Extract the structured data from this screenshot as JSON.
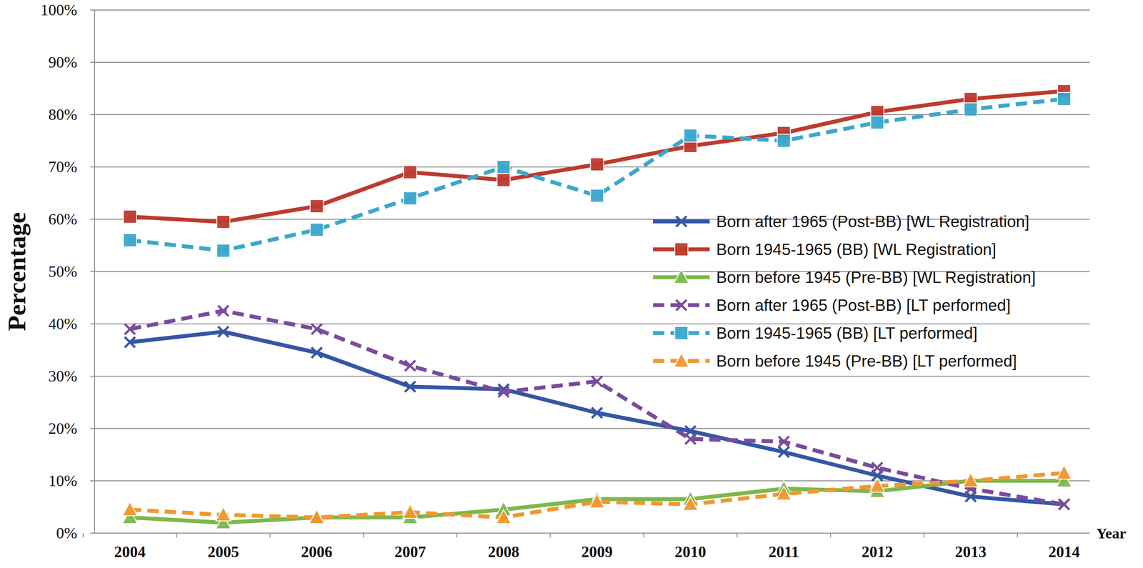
{
  "chart_data": {
    "type": "line",
    "x_label": "Year",
    "y_label": "Percentage",
    "categories": [
      "2004",
      "2005",
      "2006",
      "2007",
      "2008",
      "2009",
      "2010",
      "2011",
      "2012",
      "2013",
      "2014"
    ],
    "series": [
      {
        "name": "Born after 1965 (Post-BB) [WL Registration]",
        "color": "#3556a6",
        "marker": "x",
        "line_style": "solid",
        "values": [
          36.5,
          38.5,
          34.5,
          28,
          27.5,
          23,
          19.5,
          15.5,
          11,
          7,
          5.5
        ]
      },
      {
        "name": "Born 1945-1965 (BB) [WL Registration]",
        "color": "#be3a2e",
        "marker": "square",
        "line_style": "solid",
        "values": [
          60.5,
          59.5,
          62.5,
          69,
          67.5,
          70.5,
          74,
          76.5,
          80.5,
          83,
          84.5
        ]
      },
      {
        "name": "Born before 1945 (Pre-BB) [WL Registration]",
        "color": "#7cb84a",
        "marker": "triangle",
        "line_style": "solid",
        "values": [
          3,
          2,
          3,
          3,
          4.5,
          6.5,
          6.5,
          8.5,
          8,
          10,
          10
        ]
      },
      {
        "name": "Born after 1965 (Post-BB) [LT performed]",
        "color": "#7a4b9e",
        "marker": "x",
        "line_style": "dashed",
        "values": [
          39,
          42.5,
          39,
          32,
          27,
          29,
          18,
          17.5,
          12.5,
          8.5,
          5.5
        ]
      },
      {
        "name": "Born 1945-1965 (BB) [LT performed]",
        "color": "#3ba7cc",
        "marker": "square",
        "line_style": "dashed",
        "values": [
          56,
          54,
          58,
          64,
          70,
          64.5,
          76,
          75,
          78.5,
          81,
          83
        ]
      },
      {
        "name": "Born before 1945 (Pre-BB) [LT performed]",
        "color": "#f0982e",
        "marker": "triangle",
        "line_style": "dashed",
        "values": [
          4.5,
          3.5,
          3,
          4,
          3,
          6,
          5.5,
          7.5,
          9,
          10,
          11.5
        ]
      }
    ],
    "ylim": [
      0,
      100
    ],
    "yticks": [
      {
        "value": 0,
        "label": "0%"
      },
      {
        "value": 10,
        "label": "10%"
      },
      {
        "value": 20,
        "label": "20%"
      },
      {
        "value": 30,
        "label": "30%"
      },
      {
        "value": 40,
        "label": "40%"
      },
      {
        "value": 50,
        "label": "50%"
      },
      {
        "value": 60,
        "label": "60%"
      },
      {
        "value": 70,
        "label": "70%"
      },
      {
        "value": 80,
        "label": "80%"
      },
      {
        "value": 90,
        "label": "90%"
      },
      {
        "value": 100,
        "label": "100%"
      }
    ],
    "grid": true,
    "legend": "right"
  }
}
